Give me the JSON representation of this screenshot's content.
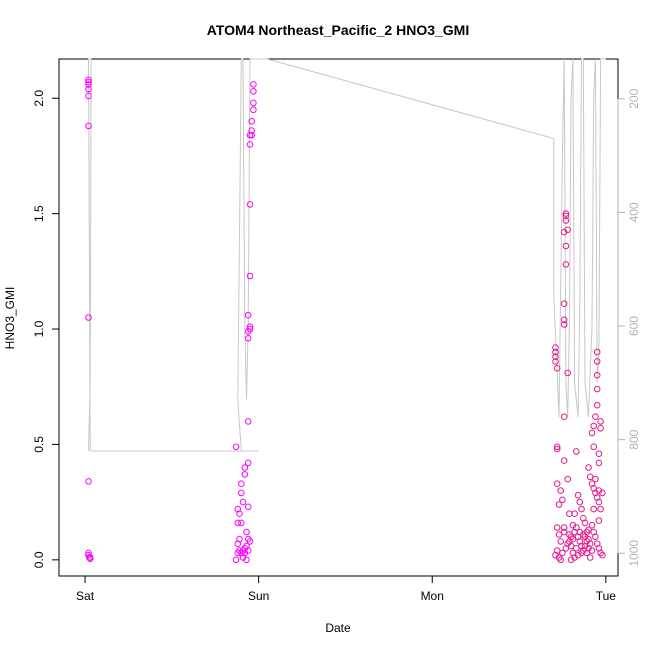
{
  "chart_data": {
    "type": "scatter",
    "title": "ATOM4 Northeast_Pacific_2 HNO3_GMI",
    "xlabel": "Date",
    "ylabel": "HNO3_GMI",
    "x_tick_labels": [
      "Sat",
      "Sun",
      "Mon",
      "Tue"
    ],
    "x_ticks_day": [
      0,
      1,
      2,
      3
    ],
    "xlim_day": [
      -0.15,
      3.07
    ],
    "ylim": [
      -0.07,
      2.17
    ],
    "y_ticks": [
      0.0,
      0.5,
      1.0,
      1.5,
      2.0
    ],
    "y_tick_labels": [
      "0.0",
      "0.5",
      "1.0",
      "1.5",
      "2.0"
    ],
    "right_axis": {
      "ylim": [
        1040,
        130
      ],
      "ticks": [
        200,
        400,
        600,
        800,
        1000
      ],
      "tick_labels": [
        "200",
        "400",
        "600",
        "800",
        "1000"
      ],
      "color": "#b3b3b3"
    },
    "colors": {
      "points": "#e6198c",
      "points_alt": "#ff00ff",
      "pressure_line": "#c8c8c8"
    },
    "pressure_series": {
      "points": [
        [
          0.02,
          820
        ],
        [
          0.03,
          700
        ],
        [
          0.035,
          130
        ],
        [
          0.02,
          130
        ],
        [
          0.03,
          820
        ],
        [
          0.5,
          820
        ],
        [
          0.98,
          820
        ],
        [
          1.0,
          820
        ],
        [
          0.9,
          820
        ],
        [
          0.88,
          730
        ],
        [
          0.9,
          130
        ],
        [
          0.91,
          130
        ],
        [
          0.92,
          600
        ],
        [
          0.93,
          730
        ],
        [
          0.94,
          600
        ],
        [
          0.95,
          130
        ],
        [
          0.96,
          130
        ],
        [
          0.98,
          130
        ],
        [
          1.0,
          130
        ],
        [
          1.05,
          130
        ],
        [
          2.7,
          270
        ],
        [
          2.7,
          550
        ],
        [
          2.72,
          680
        ],
        [
          2.73,
          760
        ],
        [
          2.75,
          300
        ],
        [
          2.76,
          130
        ],
        [
          2.77,
          700
        ],
        [
          2.78,
          760
        ],
        [
          2.79,
          600
        ],
        [
          2.8,
          200
        ],
        [
          2.81,
          130
        ],
        [
          2.82,
          700
        ],
        [
          2.84,
          760
        ],
        [
          2.85,
          560
        ],
        [
          2.86,
          130
        ],
        [
          2.87,
          130
        ],
        [
          2.88,
          700
        ],
        [
          2.9,
          760
        ],
        [
          2.92,
          600
        ],
        [
          2.93,
          200
        ],
        [
          2.94,
          130
        ],
        [
          2.95,
          700
        ],
        [
          2.96,
          650
        ],
        [
          2.97,
          130
        ],
        [
          2.98,
          130
        ],
        [
          2.99,
          130
        ],
        [
          3.0,
          130
        ]
      ]
    },
    "series": [
      {
        "color": "#ff00ff",
        "points": [
          [
            0.02,
            2.08
          ],
          [
            0.02,
            2.07
          ],
          [
            0.02,
            2.06
          ],
          [
            0.02,
            2.04
          ],
          [
            0.02,
            2.01
          ],
          [
            0.02,
            1.88
          ],
          [
            0.02,
            1.05
          ],
          [
            0.02,
            0.34
          ],
          [
            0.02,
            0.03
          ],
          [
            0.02,
            0.02
          ],
          [
            0.025,
            0.01
          ],
          [
            0.03,
            0.01
          ],
          [
            0.03,
            0.005
          ],
          [
            0.97,
            2.06
          ],
          [
            0.97,
            2.03
          ],
          [
            0.97,
            1.98
          ],
          [
            0.97,
            1.95
          ],
          [
            0.96,
            1.9
          ],
          [
            0.96,
            1.86
          ],
          [
            0.96,
            1.84
          ],
          [
            0.95,
            1.84
          ],
          [
            0.95,
            1.8
          ],
          [
            0.95,
            1.54
          ],
          [
            0.95,
            1.23
          ],
          [
            0.95,
            1.01
          ],
          [
            0.95,
            1.0
          ],
          [
            0.94,
            0.99
          ],
          [
            0.94,
            0.96
          ],
          [
            0.94,
            1.06
          ],
          [
            0.94,
            0.6
          ],
          [
            0.94,
            0.42
          ],
          [
            0.92,
            0.4
          ],
          [
            0.92,
            0.37
          ],
          [
            0.9,
            0.33
          ],
          [
            0.9,
            0.29
          ],
          [
            0.91,
            0.25
          ],
          [
            0.94,
            0.23
          ],
          [
            0.89,
            0.2
          ],
          [
            0.9,
            0.16
          ],
          [
            0.88,
            0.22
          ],
          [
            0.88,
            0.16
          ],
          [
            0.89,
            0.09
          ],
          [
            0.88,
            0.07
          ],
          [
            0.87,
            0.49
          ],
          [
            0.93,
            0.12
          ],
          [
            0.94,
            0.09
          ],
          [
            0.93,
            0.06
          ],
          [
            0.91,
            0.04
          ],
          [
            0.92,
            0.03
          ],
          [
            0.9,
            0.03
          ],
          [
            0.89,
            0.04
          ],
          [
            0.88,
            0.03
          ],
          [
            0.91,
            0.01
          ],
          [
            0.93,
            0.0
          ],
          [
            0.87,
            0.0
          ],
          [
            0.95,
            0.08
          ],
          [
            0.92,
            0.05
          ],
          [
            0.94,
            0.04
          ]
        ]
      },
      {
        "color": "#e6198c",
        "points": [
          [
            2.71,
            0.92
          ],
          [
            2.71,
            0.9
          ],
          [
            2.71,
            0.88
          ],
          [
            2.71,
            0.86
          ],
          [
            2.72,
            0.83
          ],
          [
            2.72,
            0.49
          ],
          [
            2.72,
            0.48
          ],
          [
            2.72,
            0.33
          ],
          [
            2.73,
            0.24
          ],
          [
            2.72,
            0.14
          ],
          [
            2.72,
            0.04
          ],
          [
            2.71,
            0.02
          ],
          [
            2.73,
            0.01
          ],
          [
            2.74,
            0.0
          ],
          [
            2.77,
            1.5
          ],
          [
            2.77,
            1.49
          ],
          [
            2.77,
            1.47
          ],
          [
            2.78,
            1.43
          ],
          [
            2.76,
            1.42
          ],
          [
            2.77,
            1.36
          ],
          [
            2.77,
            1.28
          ],
          [
            2.76,
            1.11
          ],
          [
            2.76,
            1.04
          ],
          [
            2.76,
            1.02
          ],
          [
            2.78,
            0.81
          ],
          [
            2.76,
            0.62
          ],
          [
            2.76,
            0.43
          ],
          [
            2.74,
            0.3
          ],
          [
            2.75,
            0.26
          ],
          [
            2.78,
            0.35
          ],
          [
            2.76,
            0.14
          ],
          [
            2.79,
            0.08
          ],
          [
            2.8,
            0.06
          ],
          [
            2.8,
            0.1
          ],
          [
            2.81,
            0.03
          ],
          [
            2.82,
            0.12
          ],
          [
            2.83,
            0.14
          ],
          [
            2.84,
            0.1
          ],
          [
            2.85,
            0.08
          ],
          [
            2.86,
            0.06
          ],
          [
            2.87,
            0.04
          ],
          [
            2.82,
            0.2
          ],
          [
            2.83,
            0.47
          ],
          [
            2.84,
            0.28
          ],
          [
            2.85,
            0.25
          ],
          [
            2.86,
            0.22
          ],
          [
            2.87,
            0.18
          ],
          [
            2.88,
            0.16
          ],
          [
            2.89,
            0.12
          ],
          [
            2.9,
            0.09
          ],
          [
            2.91,
            0.07
          ],
          [
            2.88,
            0.06
          ],
          [
            2.86,
            0.03
          ],
          [
            2.84,
            0.02
          ],
          [
            2.82,
            0.01
          ],
          [
            2.8,
            0.0
          ],
          [
            2.9,
            0.4
          ],
          [
            2.91,
            0.36
          ],
          [
            2.92,
            0.33
          ],
          [
            2.93,
            0.31
          ],
          [
            2.94,
            0.29
          ],
          [
            2.95,
            0.27
          ],
          [
            2.96,
            0.25
          ],
          [
            2.97,
            0.22
          ],
          [
            2.92,
            0.55
          ],
          [
            2.93,
            0.58
          ],
          [
            2.94,
            0.62
          ],
          [
            2.95,
            0.67
          ],
          [
            2.95,
            0.74
          ],
          [
            2.95,
            0.8
          ],
          [
            2.95,
            0.86
          ],
          [
            2.95,
            0.9
          ],
          [
            2.93,
            0.49
          ],
          [
            2.96,
            0.46
          ],
          [
            2.96,
            0.42
          ],
          [
            2.97,
            0.6
          ],
          [
            2.97,
            0.57
          ],
          [
            2.94,
            0.35
          ],
          [
            2.96,
            0.3
          ],
          [
            2.98,
            0.29
          ],
          [
            2.92,
            0.15
          ],
          [
            2.93,
            0.12
          ],
          [
            2.94,
            0.1
          ],
          [
            2.95,
            0.07
          ],
          [
            2.96,
            0.05
          ],
          [
            2.97,
            0.03
          ],
          [
            2.98,
            0.02
          ],
          [
            2.96,
            0.17
          ],
          [
            2.9,
            0.13
          ],
          [
            2.89,
            0.03
          ],
          [
            2.91,
            0.01
          ],
          [
            2.87,
            0.11
          ],
          [
            2.85,
            0.12
          ],
          [
            2.83,
            0.05
          ],
          [
            2.81,
            0.09
          ],
          [
            2.79,
            0.11
          ],
          [
            2.78,
            0.07
          ],
          [
            2.77,
            0.05
          ],
          [
            2.75,
            0.03
          ],
          [
            2.74,
            0.08
          ],
          [
            2.73,
            0.11
          ],
          [
            2.76,
            0.12
          ],
          [
            2.79,
            0.2
          ],
          [
            2.81,
            0.15
          ],
          [
            2.88,
            0.1
          ],
          [
            2.89,
            0.08
          ],
          [
            2.9,
            0.05
          ],
          [
            2.93,
            0.22
          ],
          [
            2.92,
            0.04
          ]
        ]
      }
    ]
  }
}
